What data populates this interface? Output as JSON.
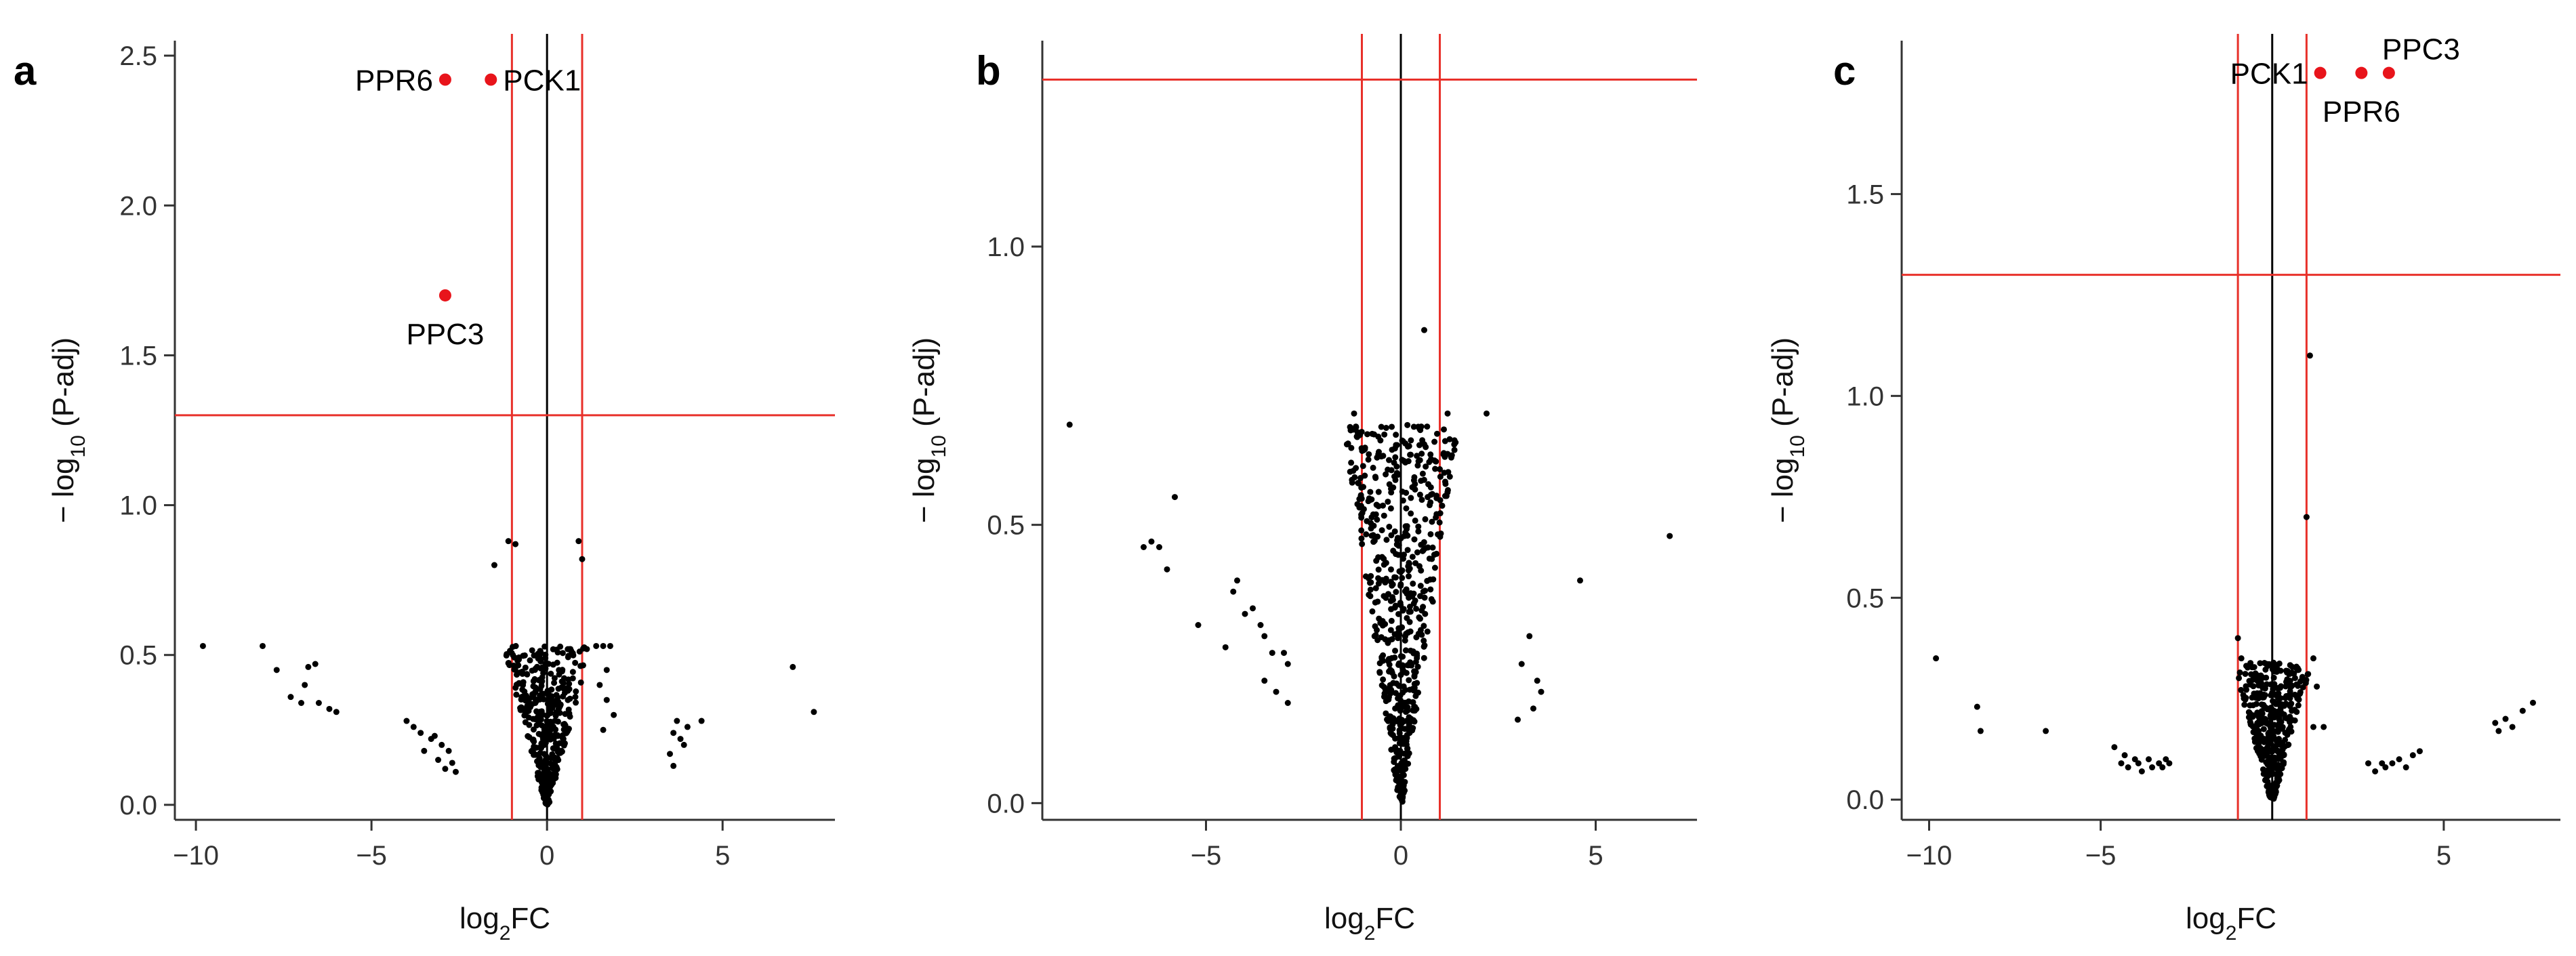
{
  "colors": {
    "threshold": "#e8302a",
    "zero_line": "#000000",
    "point": "#000000",
    "highlight": "#e8141b"
  },
  "chart_data": [
    {
      "type": "scatter",
      "panel": "a",
      "xlabel": "log2FC",
      "ylabel": "− log10 (P-adj)",
      "xlim": [
        -10.6,
        8.2
      ],
      "ylim": [
        -0.05,
        2.55
      ],
      "xticks": [
        -10,
        -5,
        0,
        5
      ],
      "xtick_labels": [
        "−10",
        "−5",
        "0",
        "5"
      ],
      "yticks": [
        0.0,
        0.5,
        1.0,
        1.5,
        2.0,
        2.5
      ],
      "ytick_labels": [
        "0.0",
        "0.5",
        "1.0",
        "1.5",
        "2.0",
        "2.5"
      ],
      "fc_threshold": 1,
      "p_threshold": 1.3,
      "highlighted": [
        {
          "label": "PPR6",
          "x": -2.9,
          "y": 2.42,
          "label_side": "left"
        },
        {
          "label": "PCK1",
          "x": -1.6,
          "y": 2.42,
          "label_side": "right"
        },
        {
          "label": "PPC3",
          "x": -2.9,
          "y": 1.7,
          "label_side": "below"
        }
      ],
      "points": [
        [
          -9.8,
          0.53
        ],
        [
          -8.1,
          0.53
        ],
        [
          -7.7,
          0.45
        ],
        [
          -7.3,
          0.36
        ],
        [
          -7.0,
          0.34
        ],
        [
          -6.8,
          0.46
        ],
        [
          -6.6,
          0.47
        ],
        [
          -6.5,
          0.34
        ],
        [
          -6.2,
          0.32
        ],
        [
          -6.0,
          0.31
        ],
        [
          -6.9,
          0.4
        ],
        [
          -4.0,
          0.28
        ],
        [
          -3.8,
          0.26
        ],
        [
          -3.6,
          0.24
        ],
        [
          -3.5,
          0.18
        ],
        [
          -3.3,
          0.22
        ],
        [
          -3.1,
          0.15
        ],
        [
          -3.0,
          0.2
        ],
        [
          -2.9,
          0.12
        ],
        [
          -2.8,
          0.18
        ],
        [
          -2.7,
          0.14
        ],
        [
          -2.6,
          0.11
        ],
        [
          -3.2,
          0.23
        ],
        [
          -1.5,
          0.8
        ],
        [
          -1.1,
          0.88
        ],
        [
          -0.9,
          0.87
        ],
        [
          1.0,
          0.82
        ],
        [
          0.9,
          0.88
        ],
        [
          1.4,
          0.53
        ],
        [
          1.6,
          0.53
        ],
        [
          1.8,
          0.53
        ],
        [
          1.5,
          0.4
        ],
        [
          1.7,
          0.35
        ],
        [
          1.9,
          0.3
        ],
        [
          1.6,
          0.25
        ],
        [
          1.7,
          0.45
        ],
        [
          3.5,
          0.17
        ],
        [
          3.6,
          0.24
        ],
        [
          3.7,
          0.28
        ],
        [
          3.8,
          0.22
        ],
        [
          3.9,
          0.2
        ],
        [
          4.0,
          0.26
        ],
        [
          4.4,
          0.28
        ],
        [
          3.6,
          0.13
        ],
        [
          7.0,
          0.46
        ],
        [
          7.6,
          0.31
        ]
      ],
      "cloud": {
        "spread_x": 1.2,
        "max_y": 0.53,
        "count": 420,
        "seed": 11
      }
    },
    {
      "type": "scatter",
      "panel": "b",
      "xlabel": "log2FC",
      "ylabel": "− log10 (P-adj)",
      "xlim": [
        -9.2,
        7.6
      ],
      "ylim": [
        -0.03,
        1.37
      ],
      "xticks": [
        -5,
        0,
        5
      ],
      "xtick_labels": [
        "−5",
        "0",
        "5"
      ],
      "yticks": [
        0.0,
        0.5,
        1.0
      ],
      "ytick_labels": [
        "0.0",
        "0.5",
        "1.0"
      ],
      "fc_threshold": 1,
      "p_threshold": 1.3,
      "highlighted": [],
      "points": [
        [
          -8.5,
          0.68
        ],
        [
          -6.6,
          0.46
        ],
        [
          -6.4,
          0.47
        ],
        [
          -6.2,
          0.46
        ],
        [
          -6.0,
          0.42
        ],
        [
          -5.8,
          0.55
        ],
        [
          -5.2,
          0.32
        ],
        [
          -4.5,
          0.28
        ],
        [
          -4.3,
          0.38
        ],
        [
          -4.2,
          0.4
        ],
        [
          -4.0,
          0.34
        ],
        [
          -3.8,
          0.35
        ],
        [
          -3.6,
          0.32
        ],
        [
          -3.5,
          0.3
        ],
        [
          -3.3,
          0.27
        ],
        [
          -3.0,
          0.27
        ],
        [
          -2.9,
          0.25
        ],
        [
          -3.5,
          0.22
        ],
        [
          -3.2,
          0.2
        ],
        [
          -2.9,
          0.18
        ],
        [
          -1.2,
          0.7
        ],
        [
          1.2,
          0.7
        ],
        [
          1.0,
          0.6
        ],
        [
          0.6,
          0.85
        ],
        [
          2.2,
          0.7
        ],
        [
          3.1,
          0.25
        ],
        [
          3.3,
          0.3
        ],
        [
          3.5,
          0.22
        ],
        [
          3.6,
          0.2
        ],
        [
          3.4,
          0.17
        ],
        [
          3.0,
          0.15
        ],
        [
          4.6,
          0.4
        ],
        [
          6.9,
          0.48
        ]
      ],
      "cloud": {
        "spread_x": 1.45,
        "max_y": 0.68,
        "count": 620,
        "seed": 23
      }
    },
    {
      "type": "scatter",
      "panel": "c",
      "xlabel": "log2FC",
      "ylabel": "− log10 (P-adj)",
      "xlim": [
        -10.8,
        8.4
      ],
      "ylim": [
        -0.05,
        1.88
      ],
      "xticks": [
        -10,
        -5,
        5
      ],
      "xtick_labels": [
        "−10",
        "−5",
        "5"
      ],
      "yticks": [
        0.0,
        0.5,
        1.0,
        1.5
      ],
      "ytick_labels": [
        "0.0",
        "0.5",
        "1.0",
        "1.5"
      ],
      "fc_threshold": 1,
      "p_threshold": 1.3,
      "highlighted": [
        {
          "label": "PCK1",
          "x": 1.4,
          "y": 1.8,
          "label_side": "left"
        },
        {
          "label": "PPR6",
          "x": 2.6,
          "y": 1.8,
          "label_side": "below"
        },
        {
          "label": "PPC3",
          "x": 3.4,
          "y": 1.8,
          "label_side": "above-right"
        }
      ],
      "points": [
        [
          -9.8,
          0.35
        ],
        [
          -8.6,
          0.23
        ],
        [
          -8.5,
          0.17
        ],
        [
          -6.6,
          0.17
        ],
        [
          -4.6,
          0.13
        ],
        [
          -4.4,
          0.09
        ],
        [
          -4.3,
          0.11
        ],
        [
          -4.2,
          0.08
        ],
        [
          -4.0,
          0.1
        ],
        [
          -3.9,
          0.09
        ],
        [
          -3.8,
          0.07
        ],
        [
          -3.6,
          0.1
        ],
        [
          -3.5,
          0.08
        ],
        [
          -3.3,
          0.09
        ],
        [
          -3.2,
          0.08
        ],
        [
          -3.1,
          0.1
        ],
        [
          -3.0,
          0.09
        ],
        [
          -1.0,
          0.4
        ],
        [
          -0.9,
          0.35
        ],
        [
          1.0,
          0.7
        ],
        [
          1.1,
          1.1
        ],
        [
          1.2,
          0.35
        ],
        [
          1.3,
          0.28
        ],
        [
          1.2,
          0.18
        ],
        [
          1.5,
          0.18
        ],
        [
          2.8,
          0.09
        ],
        [
          3.0,
          0.07
        ],
        [
          3.2,
          0.09
        ],
        [
          3.3,
          0.08
        ],
        [
          3.5,
          0.09
        ],
        [
          3.7,
          0.1
        ],
        [
          3.9,
          0.08
        ],
        [
          4.1,
          0.11
        ],
        [
          4.3,
          0.12
        ],
        [
          6.5,
          0.19
        ],
        [
          6.6,
          0.17
        ],
        [
          6.8,
          0.2
        ],
        [
          7.0,
          0.18
        ],
        [
          7.3,
          0.22
        ],
        [
          7.6,
          0.24
        ]
      ],
      "cloud": {
        "spread_x": 1.1,
        "max_y": 0.34,
        "count": 380,
        "seed": 37
      }
    }
  ]
}
